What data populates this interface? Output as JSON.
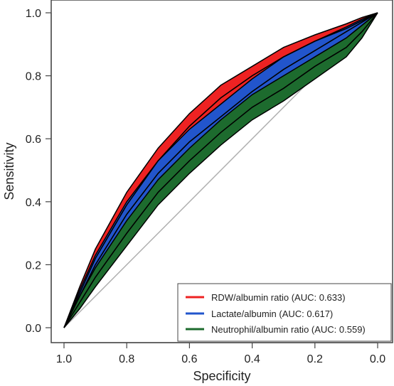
{
  "chart_data": {
    "type": "line",
    "xlabel": "Specificity",
    "ylabel": "Sensitivity",
    "xlim": [
      1.0,
      0.0
    ],
    "ylim": [
      0.0,
      1.0
    ],
    "x_reversed": true,
    "x_ticks": [
      1.0,
      0.8,
      0.6,
      0.4,
      0.2,
      0.0
    ],
    "x_tick_labels": [
      "1.0",
      "0.8",
      "0.6",
      "0.4",
      "0.2",
      "0.0"
    ],
    "y_ticks": [
      0.0,
      0.2,
      0.4,
      0.6,
      0.8,
      1.0
    ],
    "y_tick_labels": [
      "0.0",
      "0.2",
      "0.4",
      "0.6",
      "0.8",
      "1.0"
    ],
    "grid": false,
    "legend_position": "bottom-right",
    "reference_line": {
      "from": [
        1.0,
        0.0
      ],
      "to": [
        0.0,
        1.0
      ],
      "color": "#b0b0b0"
    },
    "series": [
      {
        "name": "RDW/albumin ratio (AUC: 0.633)",
        "color": "#ee2222",
        "specificity": [
          1.0,
          0.95,
          0.9,
          0.8,
          0.7,
          0.6,
          0.5,
          0.4,
          0.3,
          0.2,
          0.1,
          0.05,
          0.0
        ],
        "sensitivity": [
          0.0,
          0.11,
          0.22,
          0.39,
          0.53,
          0.64,
          0.73,
          0.8,
          0.86,
          0.91,
          0.95,
          0.975,
          1.0
        ],
        "ci_lower": [
          0.0,
          0.09,
          0.19,
          0.35,
          0.49,
          0.6,
          0.69,
          0.77,
          0.83,
          0.89,
          0.94,
          0.97,
          1.0
        ],
        "ci_upper": [
          0.0,
          0.13,
          0.25,
          0.43,
          0.57,
          0.68,
          0.77,
          0.83,
          0.89,
          0.93,
          0.965,
          0.985,
          1.0
        ]
      },
      {
        "name": "Lactate/albumin (AUC: 0.617)",
        "color": "#2255cc",
        "specificity": [
          1.0,
          0.95,
          0.9,
          0.8,
          0.7,
          0.6,
          0.5,
          0.4,
          0.3,
          0.2,
          0.1,
          0.05,
          0.0
        ],
        "sensitivity": [
          0.0,
          0.1,
          0.2,
          0.36,
          0.49,
          0.59,
          0.67,
          0.75,
          0.82,
          0.88,
          0.94,
          0.97,
          1.0
        ],
        "ci_lower": [
          0.0,
          0.08,
          0.17,
          0.32,
          0.45,
          0.55,
          0.63,
          0.71,
          0.78,
          0.86,
          0.92,
          0.96,
          1.0
        ],
        "ci_upper": [
          0.0,
          0.12,
          0.23,
          0.4,
          0.53,
          0.63,
          0.71,
          0.79,
          0.86,
          0.91,
          0.955,
          0.98,
          1.0
        ]
      },
      {
        "name": "Neutrophil/albumin ratio (AUC: 0.559)",
        "color": "#1d6b2e",
        "specificity": [
          1.0,
          0.95,
          0.9,
          0.8,
          0.7,
          0.6,
          0.5,
          0.4,
          0.3,
          0.2,
          0.1,
          0.05,
          0.0
        ],
        "sensitivity": [
          0.0,
          0.08,
          0.16,
          0.3,
          0.43,
          0.53,
          0.62,
          0.7,
          0.76,
          0.83,
          0.89,
          0.94,
          1.0
        ],
        "ci_lower": [
          0.0,
          0.06,
          0.13,
          0.26,
          0.39,
          0.49,
          0.58,
          0.66,
          0.72,
          0.79,
          0.86,
          0.92,
          1.0
        ],
        "ci_upper": [
          0.0,
          0.1,
          0.19,
          0.34,
          0.47,
          0.57,
          0.66,
          0.74,
          0.8,
          0.86,
          0.92,
          0.96,
          1.0
        ]
      }
    ]
  }
}
